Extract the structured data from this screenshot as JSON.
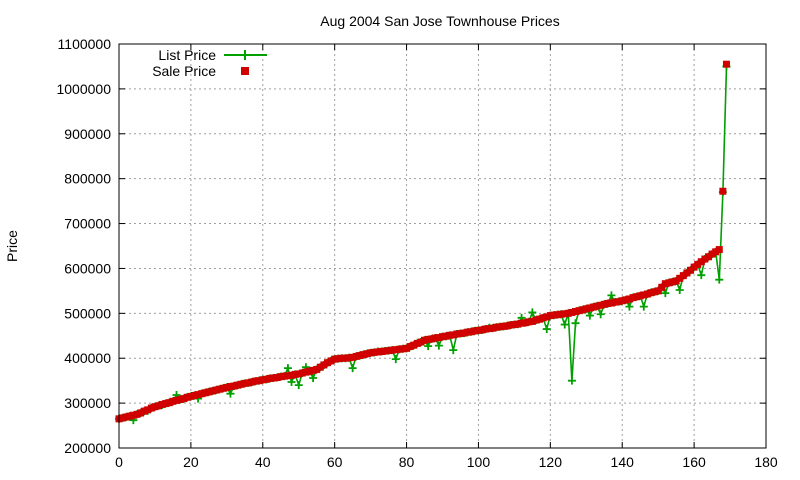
{
  "chart_data": {
    "type": "line",
    "title": "Aug 2004 San Jose Townhouse Prices",
    "xlabel": "",
    "ylabel": "Price",
    "xlim": [
      0,
      180
    ],
    "ylim": [
      200000,
      1100000
    ],
    "xticks": [
      0,
      20,
      40,
      60,
      80,
      100,
      120,
      140,
      160,
      180
    ],
    "yticks": [
      200000,
      300000,
      400000,
      500000,
      600000,
      700000,
      800000,
      900000,
      1000000,
      1100000
    ],
    "grid": true,
    "legend_position": "top-left",
    "series": [
      {
        "name": "List Price",
        "kind": "line-with-plus-markers",
        "color": "#00a000"
      },
      {
        "name": "Sale Price",
        "kind": "square-points",
        "color": "#d00000"
      }
    ],
    "anchors": {
      "sale": [
        [
          0,
          265000
        ],
        [
          5,
          275000
        ],
        [
          10,
          292000
        ],
        [
          20,
          315000
        ],
        [
          30,
          335000
        ],
        [
          40,
          352000
        ],
        [
          50,
          365000
        ],
        [
          55,
          375000
        ],
        [
          58,
          390000
        ],
        [
          60,
          398000
        ],
        [
          65,
          402000
        ],
        [
          70,
          412000
        ],
        [
          80,
          422000
        ],
        [
          85,
          440000
        ],
        [
          90,
          448000
        ],
        [
          100,
          462000
        ],
        [
          110,
          475000
        ],
        [
          115,
          482000
        ],
        [
          120,
          495000
        ],
        [
          125,
          500000
        ],
        [
          130,
          510000
        ],
        [
          135,
          520000
        ],
        [
          140,
          528000
        ],
        [
          150,
          550000
        ],
        [
          152,
          566000
        ],
        [
          155,
          572000
        ],
        [
          158,
          590000
        ],
        [
          162,
          615000
        ],
        [
          165,
          632000
        ],
        [
          167,
          642000
        ],
        [
          168,
          772000
        ],
        [
          169,
          1055000
        ]
      ],
      "list_deviations": [
        [
          4,
          262000
        ],
        [
          8,
          283000
        ],
        [
          12,
          296000
        ],
        [
          16,
          318000
        ],
        [
          22,
          310000
        ],
        [
          31,
          321000
        ],
        [
          47,
          378000
        ],
        [
          48,
          347000
        ],
        [
          50,
          340000
        ],
        [
          52,
          380000
        ],
        [
          54,
          356000
        ],
        [
          65,
          378000
        ],
        [
          72,
          415000
        ],
        [
          77,
          398000
        ],
        [
          86,
          427000
        ],
        [
          89,
          428000
        ],
        [
          93,
          418000
        ],
        [
          103,
          468000
        ],
        [
          112,
          490000
        ],
        [
          115,
          502000
        ],
        [
          119,
          465000
        ],
        [
          124,
          475000
        ],
        [
          126,
          350000
        ],
        [
          127,
          478000
        ],
        [
          131,
          495000
        ],
        [
          134,
          498000
        ],
        [
          137,
          540000
        ],
        [
          142,
          515000
        ],
        [
          146,
          515000
        ],
        [
          152,
          545000
        ],
        [
          156,
          552000
        ],
        [
          162,
          585000
        ],
        [
          167,
          575000
        ],
        [
          168,
          770000
        ],
        [
          169,
          1050000
        ]
      ]
    },
    "count": 170
  }
}
